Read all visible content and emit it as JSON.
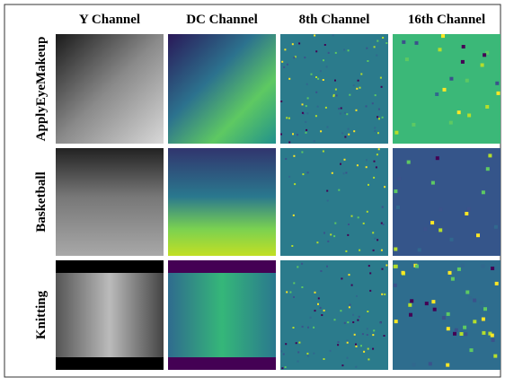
{
  "figure": {
    "column_headers": [
      "Y Channel",
      "DC Channel",
      "8th Channel",
      "16th Channel"
    ],
    "row_labels": [
      "ApplyEyeMakeup",
      "Basketball",
      "Knitting"
    ]
  }
}
